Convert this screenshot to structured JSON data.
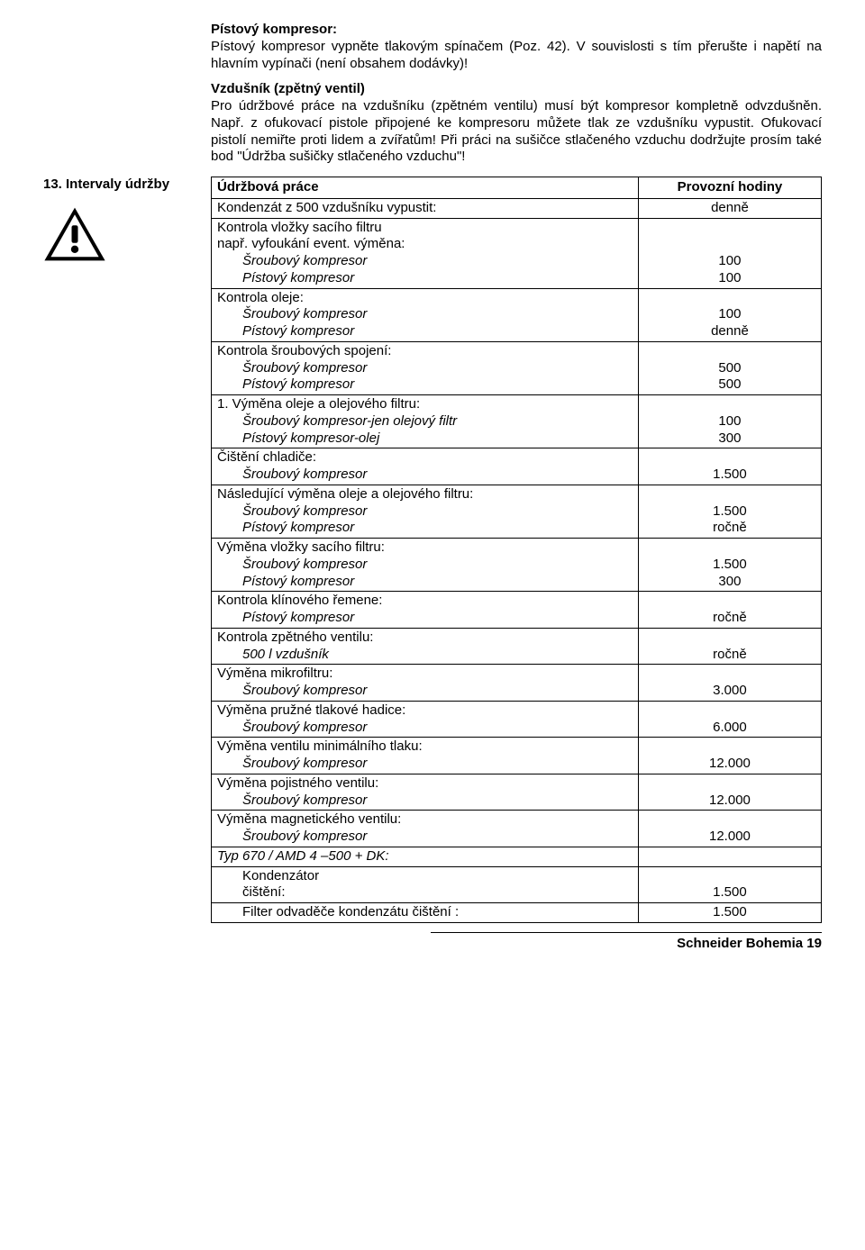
{
  "top": {
    "block1_title": "Pístový kompresor:",
    "block1_text": "Pístový kompresor vypněte  tlakovým spínačem (Poz. 42). V souvislosti s tím přerušte i napětí na hlavním vypínači (není obsahem dodávky)!",
    "block2_title": "Vzdušník (zpětný ventil)",
    "block2_text": "Pro údržbové práce na vzdušníku (zpětném ventilu) musí být kompresor kompletně odvzdušněn. Např. z ofukovací pistole připojené ke kompresoru můžete tlak ze vzdušníku vypustit. Ofukovací pistolí nemiřte proti lidem a zvířatům! Při práci na sušičce stlačeného vzduchu dodržujte prosím také bod \"Údržba sušičky stlačeného vzduchu\"!"
  },
  "side": {
    "section_title": "13. Intervaly údržby"
  },
  "table": {
    "header_left": "Údržbová práce",
    "header_right": "Provozní hodiny",
    "rows": [
      {
        "left": "Kondenzát z 500 vzdušníku vypustit:",
        "right": "denně",
        "left_indent": false,
        "left_italic": false
      },
      {
        "left_multi": [
          {
            "text": "Kontrola vložky sacího filtru",
            "indent": false,
            "italic": false
          },
          {
            "text": "např. vyfoukání event. výměna:",
            "indent": false,
            "italic": false
          },
          {
            "text": "Šroubový kompresor",
            "indent": true,
            "italic": true
          },
          {
            "text": "Pístový kompresor",
            "indent": true,
            "italic": true
          }
        ],
        "right_multi": [
          "",
          "",
          "100",
          "100"
        ]
      },
      {
        "left_multi": [
          {
            "text": "Kontrola oleje:",
            "indent": false,
            "italic": false
          },
          {
            "text": "Šroubový kompresor",
            "indent": true,
            "italic": true
          },
          {
            "text": "Pístový kompresor",
            "indent": true,
            "italic": true
          }
        ],
        "right_multi": [
          "",
          "100",
          "denně"
        ]
      },
      {
        "left_multi": [
          {
            "text": "Kontrola šroubových spojení:",
            "indent": false,
            "italic": false
          },
          {
            "text": "Šroubový kompresor",
            "indent": true,
            "italic": true
          },
          {
            "text": "Pístový kompresor",
            "indent": true,
            "italic": true
          }
        ],
        "right_multi": [
          "",
          "500",
          "500"
        ]
      },
      {
        "left_multi": [
          {
            "text": "1. Výměna oleje a olejového filtru:",
            "indent": false,
            "italic": false
          },
          {
            "text": "Šroubový kompresor-jen olejový filtr",
            "indent": true,
            "italic": true
          },
          {
            "text": "Pístový kompresor-olej",
            "indent": true,
            "italic": true
          }
        ],
        "right_multi": [
          "",
          "100",
          "300"
        ]
      },
      {
        "left_multi": [
          {
            "text": "Čištění chladiče:",
            "indent": false,
            "italic": false
          },
          {
            "text": "Šroubový kompresor",
            "indent": true,
            "italic": true
          }
        ],
        "right_multi": [
          "",
          "1.500"
        ]
      },
      {
        "left_multi": [
          {
            "text": "Následující výměna oleje a olejového filtru:",
            "indent": false,
            "italic": false
          },
          {
            "text": "Šroubový kompresor",
            "indent": true,
            "italic": true
          },
          {
            "text": "Pístový kompresor",
            "indent": true,
            "italic": true
          }
        ],
        "right_multi": [
          "",
          "1.500",
          "ročně"
        ]
      },
      {
        "left_multi": [
          {
            "text": "Výměna vložky sacího filtru:",
            "indent": false,
            "italic": false
          },
          {
            "text": "Šroubový kompresor",
            "indent": true,
            "italic": true
          },
          {
            "text": "Pístový kompresor",
            "indent": true,
            "italic": true
          }
        ],
        "right_multi": [
          "",
          "1.500",
          "300"
        ]
      },
      {
        "left_multi": [
          {
            "text": "Kontrola klínového řemene:",
            "indent": false,
            "italic": false
          },
          {
            "text": "Pístový kompresor",
            "indent": true,
            "italic": true
          }
        ],
        "right_multi": [
          "",
          "ročně"
        ]
      },
      {
        "left_multi": [
          {
            "text": "Kontrola zpětného ventilu:",
            "indent": false,
            "italic": false
          },
          {
            "text": "500 l vzdušník",
            "indent": true,
            "italic": true
          }
        ],
        "right_multi": [
          "",
          "ročně"
        ]
      },
      {
        "left_multi": [
          {
            "text": "Výměna mikrofiltru:",
            "indent": false,
            "italic": false
          },
          {
            "text": "Šroubový kompresor",
            "indent": true,
            "italic": true
          }
        ],
        "right_multi": [
          "",
          "3.000"
        ]
      },
      {
        "left_multi": [
          {
            "text": "Výměna pružné tlakové hadice:",
            "indent": false,
            "italic": false
          },
          {
            "text": "Šroubový kompresor",
            "indent": true,
            "italic": true
          }
        ],
        "right_multi": [
          "",
          "6.000"
        ]
      },
      {
        "left_multi": [
          {
            "text": "Výměna ventilu minimálního tlaku:",
            "indent": false,
            "italic": false
          },
          {
            "text": "Šroubový kompresor",
            "indent": true,
            "italic": true
          }
        ],
        "right_multi": [
          "",
          "12.000"
        ]
      },
      {
        "left_multi": [
          {
            "text": "Výměna pojistného ventilu:",
            "indent": false,
            "italic": false
          },
          {
            "text": "Šroubový kompresor",
            "indent": true,
            "italic": true
          }
        ],
        "right_multi": [
          "",
          "12.000"
        ]
      },
      {
        "left_multi": [
          {
            "text": "Výměna magnetického ventilu:",
            "indent": false,
            "italic": false
          },
          {
            "text": "Šroubový kompresor",
            "indent": true,
            "italic": true
          }
        ],
        "right_multi": [
          "",
          "12.000"
        ]
      },
      {
        "left_multi": [
          {
            "text": "Typ 670 / AMD 4 –500 + DK:",
            "indent": false,
            "italic": true
          }
        ],
        "right_multi": [
          ""
        ]
      },
      {
        "left_multi": [
          {
            "text": "Kondenzátor",
            "indent": true,
            "italic": false
          },
          {
            "text": "čištění:",
            "indent": true,
            "italic": false
          }
        ],
        "right_multi": [
          "",
          "1.500"
        ]
      },
      {
        "left_multi": [
          {
            "text": "Filter odvaděče kondenzátu čištění :",
            "indent": true,
            "italic": false
          }
        ],
        "right_multi": [
          "1.500"
        ]
      }
    ]
  },
  "footer": "Schneider Bohemia 19"
}
